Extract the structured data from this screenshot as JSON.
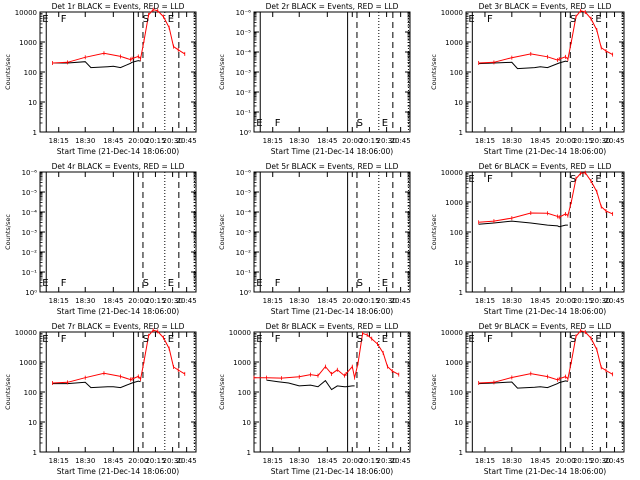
{
  "chart_data": [
    {
      "type": "line",
      "title": "Det 1r BLACK = Events, RED = LLD",
      "ylabel": "Counts/sec",
      "xlabel": "Start Time (21-Dec-14 18:06:00)",
      "yscale": "log",
      "ylim": [
        1,
        10000
      ],
      "yticks": [
        "1",
        "10",
        "100",
        "1000",
        "10000"
      ],
      "xlim": [
        "18:06",
        "20:51"
      ],
      "xticks": [
        "18:15",
        "18:30",
        "18:45",
        "20:00",
        "20:15",
        "20:30",
        "20:45"
      ],
      "markers": [
        {
          "label": "E",
          "x": "18:09"
        },
        {
          "label": "F",
          "x": "18:15"
        },
        {
          "label": "S",
          "x": "20:02"
        },
        {
          "label": "E",
          "x": "20:24"
        }
      ],
      "series": [
        {
          "color": "#000000",
          "x": [
            "18:12",
            "18:20",
            "18:30",
            "18:33",
            "18:42",
            "18:45",
            "18:50",
            "18:57",
            "19:58",
            "20:00",
            "20:02"
          ],
          "values": [
            200,
            200,
            220,
            140,
            150,
            155,
            140,
            195,
            210,
            240,
            230
          ]
        },
        {
          "color": "#ff0000",
          "x": [
            "18:12",
            "18:20",
            "18:30",
            "18:40",
            "18:50",
            "18:57",
            "19:58",
            "20:00",
            "20:02",
            "20:05",
            "20:09",
            "20:13",
            "20:17",
            "20:22",
            "20:27",
            "20:31",
            "20:36",
            "20:43"
          ],
          "values": [
            200,
            210,
            310,
            420,
            330,
            260,
            280,
            330,
            280,
            1100,
            8000,
            12000,
            11000,
            7000,
            3000,
            700,
            550,
            400
          ]
        }
      ]
    },
    {
      "type": "line",
      "title": "Det 2r BLACK = Events, RED = LLD",
      "ylabel": "Counts/sec",
      "xlabel": "Start Time (21-Dec-14 18:06:00)",
      "yscale": "log",
      "ylim": [
        1,
        1e-06
      ],
      "yticks": [
        "10⁰",
        "10⁻¹",
        "10⁻²",
        "10⁻³",
        "10⁻⁴",
        "10⁻⁵",
        "10⁻⁶"
      ],
      "xlim": [
        "18:06",
        "20:51"
      ],
      "xticks": [
        "18:15",
        "18:30",
        "18:45",
        "20:00",
        "20:15",
        "20:30",
        "20:45"
      ],
      "markers": [
        {
          "label": "E",
          "x": "18:09"
        },
        {
          "label": "F",
          "x": "18:15"
        },
        {
          "label": "S",
          "x": "20:02"
        },
        {
          "label": "E",
          "x": "20:24"
        }
      ],
      "series": []
    },
    {
      "type": "line",
      "title": "Det 3r BLACK = Events, RED = LLD",
      "ylabel": "Counts/sec",
      "xlabel": "Start Time (21-Dec-14 18:06:00)",
      "yscale": "log",
      "ylim": [
        1,
        10000
      ],
      "yticks": [
        "1",
        "10",
        "100",
        "1000",
        "10000"
      ],
      "xlim": [
        "18:06",
        "20:51"
      ],
      "xticks": [
        "18:15",
        "18:30",
        "18:45",
        "20:00",
        "20:15",
        "20:30",
        "20:45"
      ],
      "markers": [
        {
          "label": "E",
          "x": "18:09"
        },
        {
          "label": "F",
          "x": "18:15"
        },
        {
          "label": "S",
          "x": "20:02"
        },
        {
          "label": "E",
          "x": "20:24"
        }
      ],
      "series": [
        {
          "color": "#000000",
          "x": [
            "18:12",
            "18:20",
            "18:30",
            "18:33",
            "18:42",
            "18:45",
            "18:50",
            "18:57",
            "19:58",
            "20:00",
            "20:02"
          ],
          "values": [
            190,
            200,
            210,
            130,
            140,
            150,
            140,
            190,
            200,
            230,
            220
          ]
        },
        {
          "color": "#ff0000",
          "x": [
            "18:12",
            "18:20",
            "18:30",
            "18:40",
            "18:50",
            "18:57",
            "19:58",
            "20:00",
            "20:02",
            "20:05",
            "20:09",
            "20:13",
            "20:17",
            "20:22",
            "20:27",
            "20:31",
            "20:36",
            "20:43"
          ],
          "values": [
            200,
            210,
            300,
            400,
            320,
            250,
            270,
            320,
            270,
            1000,
            7000,
            11000,
            10000,
            6000,
            2500,
            650,
            500,
            380
          ]
        }
      ]
    },
    {
      "type": "line",
      "title": "Det 4r BLACK = Events, RED = LLD",
      "ylabel": "Counts/sec",
      "xlabel": "Start Time (21-Dec-14 18:06:00)",
      "yscale": "log",
      "ylim": [
        1,
        1e-06
      ],
      "yticks": [
        "10⁰",
        "10⁻¹",
        "10⁻²",
        "10⁻³",
        "10⁻⁴",
        "10⁻⁵",
        "10⁻⁶"
      ],
      "xlim": [
        "18:06",
        "20:51"
      ],
      "xticks": [
        "18:15",
        "18:30",
        "18:45",
        "20:00",
        "20:15",
        "20:30",
        "20:45"
      ],
      "markers": [
        {
          "label": "E",
          "x": "18:09"
        },
        {
          "label": "F",
          "x": "18:15"
        },
        {
          "label": "S",
          "x": "20:02"
        },
        {
          "label": "E",
          "x": "20:24"
        }
      ],
      "series": []
    },
    {
      "type": "line",
      "title": "Det 5r BLACK = Events, RED = LLD",
      "ylabel": "Counts/sec",
      "xlabel": "Start Time (21-Dec-14 18:06:00)",
      "yscale": "log",
      "ylim": [
        1,
        1e-06
      ],
      "yticks": [
        "10⁰",
        "10⁻¹",
        "10⁻²",
        "10⁻³",
        "10⁻⁴",
        "10⁻⁵",
        "10⁻⁶"
      ],
      "xlim": [
        "18:06",
        "20:51"
      ],
      "xticks": [
        "18:15",
        "18:30",
        "18:45",
        "20:00",
        "20:15",
        "20:30",
        "20:45"
      ],
      "markers": [
        {
          "label": "E",
          "x": "18:09"
        },
        {
          "label": "F",
          "x": "18:15"
        },
        {
          "label": "S",
          "x": "20:02"
        },
        {
          "label": "E",
          "x": "20:24"
        }
      ],
      "series": []
    },
    {
      "type": "line",
      "title": "Det 6r BLACK = Events, RED = LLD",
      "ylabel": "Counts/sec",
      "xlabel": "Start Time (21-Dec-14 18:06:00)",
      "yscale": "log",
      "ylim": [
        1,
        10000
      ],
      "yticks": [
        "1",
        "10",
        "100",
        "1000",
        "10000"
      ],
      "xlim": [
        "18:06",
        "20:51"
      ],
      "xticks": [
        "18:15",
        "18:30",
        "18:45",
        "20:00",
        "20:15",
        "20:30",
        "20:45"
      ],
      "markers": [
        {
          "label": "E",
          "x": "18:09"
        },
        {
          "label": "F",
          "x": "18:15"
        },
        {
          "label": "S",
          "x": "20:02"
        },
        {
          "label": "E",
          "x": "20:24"
        }
      ],
      "series": [
        {
          "color": "#000000",
          "x": [
            "18:12",
            "18:20",
            "18:30",
            "18:40",
            "18:50",
            "18:57",
            "19:58",
            "20:00",
            "20:02"
          ],
          "values": [
            180,
            200,
            230,
            200,
            170,
            160,
            150,
            170,
            170
          ]
        },
        {
          "color": "#ff0000",
          "x": [
            "18:12",
            "18:20",
            "18:30",
            "18:40",
            "18:50",
            "18:57",
            "19:58",
            "20:00",
            "20:02",
            "20:05",
            "20:09",
            "20:13",
            "20:17",
            "20:22",
            "20:27",
            "20:31",
            "20:36",
            "20:43"
          ],
          "values": [
            210,
            230,
            290,
            430,
            420,
            330,
            310,
            400,
            350,
            1000,
            6000,
            9000,
            9500,
            5000,
            2200,
            700,
            500,
            400
          ]
        }
      ]
    },
    {
      "type": "line",
      "title": "Det 7r BLACK = Events, RED = LLD",
      "ylabel": "Counts/sec",
      "xlabel": "Start Time (21-Dec-14 18:06:00)",
      "yscale": "log",
      "ylim": [
        1,
        10000
      ],
      "yticks": [
        "1",
        "10",
        "100",
        "1000",
        "10000"
      ],
      "xlim": [
        "18:06",
        "20:51"
      ],
      "xticks": [
        "18:15",
        "18:30",
        "18:45",
        "20:00",
        "20:15",
        "20:30",
        "20:45"
      ],
      "markers": [
        {
          "label": "E",
          "x": "18:09"
        },
        {
          "label": "F",
          "x": "18:15"
        },
        {
          "label": "S",
          "x": "20:02"
        },
        {
          "label": "E",
          "x": "20:24"
        }
      ],
      "series": [
        {
          "color": "#000000",
          "x": [
            "18:12",
            "18:20",
            "18:30",
            "18:33",
            "18:42",
            "18:45",
            "18:50",
            "18:57",
            "19:58",
            "20:00",
            "20:02"
          ],
          "values": [
            190,
            190,
            210,
            140,
            150,
            150,
            140,
            190,
            200,
            230,
            220
          ]
        },
        {
          "color": "#ff0000",
          "x": [
            "18:12",
            "18:20",
            "18:30",
            "18:40",
            "18:50",
            "18:57",
            "19:58",
            "20:00",
            "20:02",
            "20:05",
            "20:09",
            "20:13",
            "20:17",
            "20:22",
            "20:27",
            "20:31",
            "20:36",
            "20:43"
          ],
          "values": [
            200,
            210,
            300,
            420,
            330,
            260,
            270,
            330,
            270,
            1050,
            7500,
            11500,
            10500,
            6500,
            2800,
            680,
            540,
            400
          ]
        }
      ]
    },
    {
      "type": "line",
      "title": "Det 8r BLACK = Events, RED = LLD",
      "ylabel": "Counts/sec",
      "xlabel": "Start Time (21-Dec-14 18:06:00)",
      "yscale": "log",
      "ylim": [
        1,
        10000
      ],
      "yticks": [
        "1",
        "10",
        "100",
        "1000",
        "10000"
      ],
      "xlim": [
        "18:06",
        "20:51"
      ],
      "xticks": [
        "18:15",
        "18:30",
        "18:45",
        "20:00",
        "20:15",
        "20:30",
        "20:45"
      ],
      "markers": [
        {
          "label": "E",
          "x": "18:09"
        },
        {
          "label": "F",
          "x": "18:15"
        },
        {
          "label": "S",
          "x": "20:02"
        },
        {
          "label": "E",
          "x": "20:24"
        }
      ],
      "series": [
        {
          "color": "#000000",
          "x": [
            "18:12",
            "18:18",
            "18:24",
            "18:30",
            "18:36",
            "18:40",
            "18:44",
            "18:48",
            "18:52",
            "18:57",
            "19:58",
            "20:00",
            "20:02"
          ],
          "values": [
            250,
            220,
            200,
            160,
            170,
            150,
            240,
            120,
            160,
            150,
            150,
            160,
            160
          ]
        },
        {
          "color": "#ff0000",
          "x": [
            "18:06",
            "18:12",
            "18:20",
            "18:30",
            "18:36",
            "18:40",
            "18:44",
            "18:48",
            "18:52",
            "18:57",
            "19:58",
            "20:00",
            "20:02",
            "20:05",
            "20:09",
            "20:13",
            "20:17",
            "20:22",
            "20:27",
            "20:31",
            "20:36",
            "20:43"
          ],
          "values": [
            300,
            300,
            290,
            320,
            380,
            350,
            700,
            400,
            550,
            350,
            400,
            700,
            300,
            900,
            9000,
            8000,
            6000,
            4000,
            2000,
            700,
            500,
            380
          ]
        }
      ]
    },
    {
      "type": "line",
      "title": "Det 9r BLACK = Events, RED = LLD",
      "ylabel": "Counts/sec",
      "xlabel": "Start Time (21-Dec-14 18:06:00)",
      "yscale": "log",
      "ylim": [
        1,
        10000
      ],
      "yticks": [
        "1",
        "10",
        "100",
        "1000",
        "10000"
      ],
      "xlim": [
        "18:06",
        "20:51"
      ],
      "xticks": [
        "18:15",
        "18:30",
        "18:45",
        "20:00",
        "20:15",
        "20:30",
        "20:45"
      ],
      "markers": [
        {
          "label": "E",
          "x": "18:09"
        },
        {
          "label": "F",
          "x": "18:15"
        },
        {
          "label": "S",
          "x": "20:02"
        },
        {
          "label": "E",
          "x": "20:24"
        }
      ],
      "series": [
        {
          "color": "#000000",
          "x": [
            "18:12",
            "18:20",
            "18:30",
            "18:33",
            "18:42",
            "18:45",
            "18:50",
            "18:57",
            "19:58",
            "20:00",
            "20:02"
          ],
          "values": [
            190,
            200,
            215,
            135,
            145,
            150,
            140,
            190,
            205,
            235,
            225
          ]
        },
        {
          "color": "#ff0000",
          "x": [
            "18:12",
            "18:20",
            "18:30",
            "18:40",
            "18:50",
            "18:57",
            "19:58",
            "20:00",
            "20:02",
            "20:05",
            "20:09",
            "20:13",
            "20:17",
            "20:22",
            "20:27",
            "20:31",
            "20:36",
            "20:43"
          ],
          "values": [
            200,
            210,
            305,
            410,
            325,
            255,
            275,
            325,
            275,
            1000,
            7200,
            11000,
            10000,
            6200,
            2600,
            660,
            520,
            390
          ]
        }
      ]
    }
  ]
}
